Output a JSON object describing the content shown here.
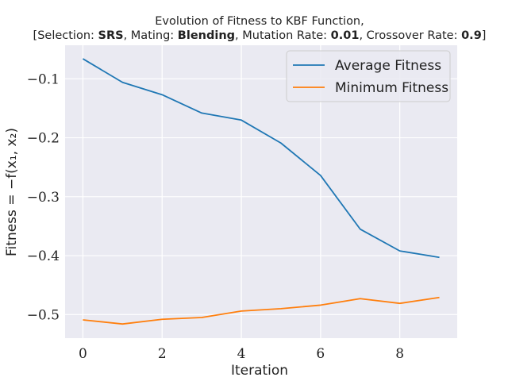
{
  "chart_data": {
    "type": "line",
    "title_line1": "Evolution of Fitness to KBF Function,",
    "title_line2": {
      "selection_label": "[Selection: ",
      "selection_value": "SRS",
      "mating_label": ", Mating: ",
      "mating_value": "Blending",
      "mutation_label": ", Mutation Rate: ",
      "mutation_value": "0.01",
      "crossover_label": ", Crossover Rate: ",
      "crossover_value": "0.9",
      "closing": "]"
    },
    "xlabel": "Iteration",
    "ylabel": "Fitness = −f(x₁, x₂)",
    "x": [
      0,
      1,
      2,
      3,
      4,
      5,
      6,
      7,
      8,
      9
    ],
    "xlim": [
      -0.45,
      9.45
    ],
    "ylim": [
      -0.54,
      -0.043
    ],
    "xticks": [
      0,
      2,
      4,
      6,
      8
    ],
    "xtick_labels": [
      "0",
      "2",
      "4",
      "6",
      "8"
    ],
    "yticks": [
      -0.1,
      -0.2,
      -0.3,
      -0.4,
      -0.5
    ],
    "ytick_labels": [
      "−0.1",
      "−0.2",
      "−0.3",
      "−0.4",
      "−0.5"
    ],
    "grid": true,
    "legend_position": "top-right",
    "series": [
      {
        "name": "Average Fitness",
        "color": "#1f77b4",
        "values": [
          -0.066,
          -0.106,
          -0.127,
          -0.158,
          -0.17,
          -0.209,
          -0.264,
          -0.355,
          -0.392,
          -0.403
        ]
      },
      {
        "name": "Minimum Fitness",
        "color": "#ff7f0e",
        "values": [
          -0.509,
          -0.516,
          -0.508,
          -0.505,
          -0.494,
          -0.49,
          -0.484,
          -0.473,
          -0.481,
          -0.471
        ]
      }
    ]
  }
}
